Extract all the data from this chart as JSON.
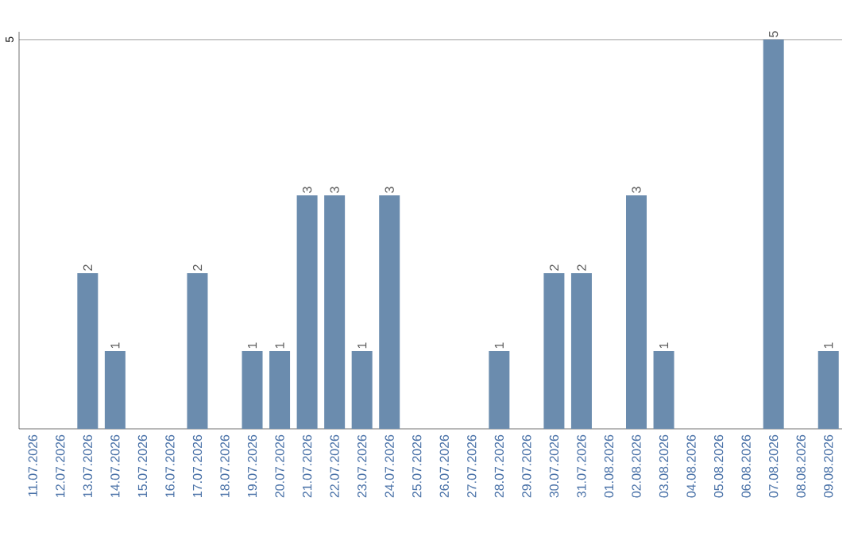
{
  "chart_data": {
    "type": "bar",
    "categories": [
      "11.07.2026",
      "12.07.2026",
      "13.07.2026",
      "14.07.2026",
      "15.07.2026",
      "16.07.2026",
      "17.07.2026",
      "18.07.2026",
      "19.07.2026",
      "20.07.2026",
      "21.07.2026",
      "22.07.2026",
      "23.07.2026",
      "24.07.2026",
      "25.07.2026",
      "26.07.2026",
      "27.07.2026",
      "28.07.2026",
      "29.07.2026",
      "30.07.2026",
      "31.07.2026",
      "01.08.2026",
      "02.08.2026",
      "03.08.2026",
      "04.08.2026",
      "05.08.2026",
      "06.08.2026",
      "07.08.2026",
      "08.08.2026",
      "09.08.2026"
    ],
    "values": [
      0,
      0,
      2,
      1,
      0,
      0,
      2,
      0,
      1,
      1,
      3,
      3,
      1,
      3,
      0,
      0,
      0,
      1,
      0,
      2,
      2,
      0,
      3,
      1,
      0,
      0,
      0,
      5,
      0,
      1
    ],
    "value_labels": [
      null,
      null,
      "2",
      "1",
      null,
      null,
      "2",
      null,
      "1",
      "1",
      "3",
      "3",
      "1",
      "3",
      null,
      null,
      null,
      "1",
      null,
      "2",
      "2",
      null,
      "3",
      "1",
      null,
      null,
      null,
      "5",
      null,
      "1"
    ],
    "color": "#6b8cae",
    "ylim": [
      0,
      5.1
    ],
    "yticks": [
      5
    ],
    "grid": "y"
  }
}
